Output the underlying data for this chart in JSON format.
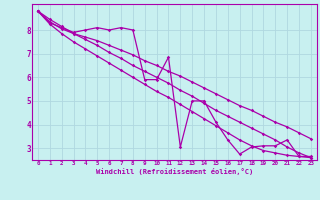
{
  "xlabel": "Windchill (Refroidissement éolien,°C)",
  "bg_color": "#c8f0f0",
  "grid_color": "#b0d8e0",
  "line_color": "#aa00aa",
  "xlim": [
    -0.5,
    23.5
  ],
  "ylim": [
    2.5,
    9.1
  ],
  "xticks": [
    0,
    1,
    2,
    3,
    4,
    5,
    6,
    7,
    8,
    9,
    10,
    11,
    12,
    13,
    14,
    15,
    16,
    17,
    18,
    19,
    20,
    21,
    22,
    23
  ],
  "yticks": [
    3,
    4,
    5,
    6,
    7,
    8
  ],
  "line1_x": [
    0,
    1,
    2,
    3,
    4,
    5,
    6,
    7,
    8,
    9,
    10,
    11,
    12,
    13,
    14,
    15,
    16,
    17,
    18,
    19,
    20,
    21,
    22,
    23
  ],
  "line1_y": [
    8.8,
    8.3,
    8.1,
    7.9,
    8.0,
    8.1,
    8.0,
    8.1,
    8.0,
    5.9,
    5.9,
    6.85,
    3.05,
    5.0,
    5.0,
    4.1,
    3.35,
    2.75,
    3.05,
    3.1,
    3.1,
    3.35,
    2.65,
    2.65
  ],
  "line2_x": [
    0,
    1,
    2,
    3,
    4,
    5,
    6,
    7,
    8,
    9,
    10,
    11,
    12,
    13,
    14,
    15,
    16,
    17,
    18,
    19,
    20,
    21,
    22,
    23
  ],
  "line2_y": [
    8.8,
    8.35,
    8.05,
    7.85,
    7.7,
    7.55,
    7.35,
    7.15,
    6.95,
    6.7,
    6.5,
    6.25,
    6.05,
    5.8,
    5.55,
    5.3,
    5.05,
    4.8,
    4.6,
    4.35,
    4.1,
    3.9,
    3.65,
    3.4
  ],
  "line3_x": [
    0,
    1,
    2,
    3,
    4,
    5,
    6,
    7,
    8,
    9,
    10,
    11,
    12,
    13,
    14,
    15,
    16,
    17,
    18,
    19,
    20,
    21,
    22,
    23
  ],
  "line3_y": [
    8.8,
    8.25,
    7.85,
    7.5,
    7.2,
    6.9,
    6.6,
    6.3,
    6.0,
    5.7,
    5.4,
    5.15,
    4.85,
    4.55,
    4.25,
    3.95,
    3.65,
    3.35,
    3.1,
    2.9,
    2.8,
    2.7,
    2.65,
    2.6
  ],
  "line4_x": [
    0,
    1,
    2,
    3,
    4,
    5,
    6,
    7,
    8,
    9,
    10,
    11,
    12,
    13,
    14,
    15,
    16,
    17,
    18,
    19,
    20,
    21,
    22,
    23
  ],
  "line4_y": [
    8.8,
    8.45,
    8.15,
    7.85,
    7.6,
    7.35,
    7.05,
    6.8,
    6.5,
    6.25,
    6.0,
    5.75,
    5.45,
    5.2,
    4.9,
    4.6,
    4.35,
    4.1,
    3.85,
    3.6,
    3.35,
    3.05,
    2.8,
    2.6
  ]
}
